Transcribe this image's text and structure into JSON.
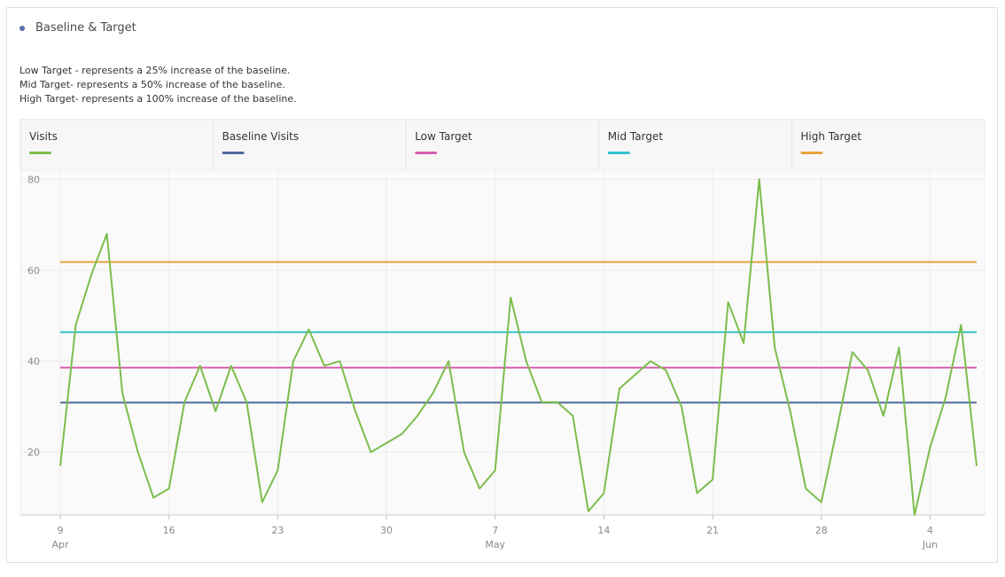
{
  "chart_data": {
    "type": "line",
    "title": "Baseline & Target",
    "description": [
      "Low Target - represents a 25% increase of the baseline.",
      "Mid Target- represents a 50% increase of the baseline.",
      "High Target- represents a 100% increase of the baseline."
    ],
    "categories": [
      "9 Apr",
      null,
      null,
      null,
      null,
      null,
      null,
      "16",
      null,
      null,
      null,
      null,
      null,
      null,
      "23",
      null,
      null,
      null,
      null,
      null,
      null,
      "30",
      null,
      null,
      null,
      null,
      null,
      null,
      "7 May",
      null,
      null,
      null,
      null,
      null,
      null,
      "14",
      null,
      null,
      null,
      null,
      null,
      null,
      "21",
      null,
      null,
      null,
      null,
      null,
      null,
      "28",
      null,
      null,
      null,
      null,
      null,
      null,
      "4 Jun",
      null,
      null,
      null
    ],
    "series": [
      {
        "name": "Visits",
        "color": "#7cbd4c",
        "values": [
          17,
          48,
          59,
          68,
          33,
          20,
          10,
          12,
          31,
          39,
          29,
          39,
          31,
          9,
          16,
          40,
          47,
          39,
          40,
          29,
          20,
          22,
          24,
          28,
          33,
          40,
          20,
          12,
          16,
          54,
          40,
          31,
          31,
          28,
          7,
          11,
          34,
          37,
          40,
          38,
          30,
          11,
          14,
          53,
          44,
          80,
          43,
          29,
          12,
          9,
          25,
          42,
          38,
          28,
          43,
          6.2,
          21,
          32,
          48,
          17
        ]
      },
      {
        "name": "Baseline Visits",
        "color": "#4e6a9c",
        "values": [
          30.9,
          30.9,
          30.9,
          30.9,
          30.9,
          30.9,
          30.9,
          30.9,
          30.9,
          30.9,
          30.9,
          30.9,
          30.9,
          30.9,
          30.9,
          30.9,
          30.9,
          30.9,
          30.9,
          30.9,
          30.9,
          30.9,
          30.9,
          30.9,
          30.9,
          30.9,
          30.9,
          30.9,
          30.9,
          30.9,
          30.9,
          30.9,
          30.9,
          30.9,
          30.9,
          30.9,
          30.9,
          30.9,
          30.9,
          30.9,
          30.9,
          30.9,
          30.9,
          30.9,
          30.9,
          30.9,
          30.9,
          30.9,
          30.9,
          30.9,
          30.9,
          30.9,
          30.9,
          30.9,
          30.9,
          30.9,
          30.9,
          30.9,
          30.9,
          30.9
        ]
      },
      {
        "name": "Low Target",
        "color": "#d55fb0",
        "values": [
          38.6,
          38.6,
          38.6,
          38.6,
          38.6,
          38.6,
          38.6,
          38.6,
          38.6,
          38.6,
          38.6,
          38.6,
          38.6,
          38.6,
          38.6,
          38.6,
          38.6,
          38.6,
          38.6,
          38.6,
          38.6,
          38.6,
          38.6,
          38.6,
          38.6,
          38.6,
          38.6,
          38.6,
          38.6,
          38.6,
          38.6,
          38.6,
          38.6,
          38.6,
          38.6,
          38.6,
          38.6,
          38.6,
          38.6,
          38.6,
          38.6,
          38.6,
          38.6,
          38.6,
          38.6,
          38.6,
          38.6,
          38.6,
          38.6,
          38.6,
          38.6,
          38.6,
          38.6,
          38.6,
          38.6,
          38.6,
          38.6,
          38.6,
          38.6,
          38.6
        ]
      },
      {
        "name": "Mid Target",
        "color": "#33c2cc",
        "values": [
          46.4,
          46.4,
          46.4,
          46.4,
          46.4,
          46.4,
          46.4,
          46.4,
          46.4,
          46.4,
          46.4,
          46.4,
          46.4,
          46.4,
          46.4,
          46.4,
          46.4,
          46.4,
          46.4,
          46.4,
          46.4,
          46.4,
          46.4,
          46.4,
          46.4,
          46.4,
          46.4,
          46.4,
          46.4,
          46.4,
          46.4,
          46.4,
          46.4,
          46.4,
          46.4,
          46.4,
          46.4,
          46.4,
          46.4,
          46.4,
          46.4,
          46.4,
          46.4,
          46.4,
          46.4,
          46.4,
          46.4,
          46.4,
          46.4,
          46.4,
          46.4,
          46.4,
          46.4,
          46.4,
          46.4,
          46.4,
          46.4,
          46.4,
          46.4,
          46.4
        ]
      },
      {
        "name": "High Target",
        "color": "#e8a33d",
        "values": [
          61.8,
          61.8,
          61.8,
          61.8,
          61.8,
          61.8,
          61.8,
          61.8,
          61.8,
          61.8,
          61.8,
          61.8,
          61.8,
          61.8,
          61.8,
          61.8,
          61.8,
          61.8,
          61.8,
          61.8,
          61.8,
          61.8,
          61.8,
          61.8,
          61.8,
          61.8,
          61.8,
          61.8,
          61.8,
          61.8,
          61.8,
          61.8,
          61.8,
          61.8,
          61.8,
          61.8,
          61.8,
          61.8,
          61.8,
          61.8,
          61.8,
          61.8,
          61.8,
          61.8,
          61.8,
          61.8,
          61.8,
          61.8,
          61.8,
          61.8,
          61.8,
          61.8,
          61.8,
          61.8,
          61.8,
          61.8,
          61.8,
          61.8,
          61.8,
          61.8
        ]
      }
    ],
    "ylim": [
      6.2,
      82
    ],
    "yticks": [
      20,
      40,
      60,
      80
    ],
    "grid": true
  }
}
